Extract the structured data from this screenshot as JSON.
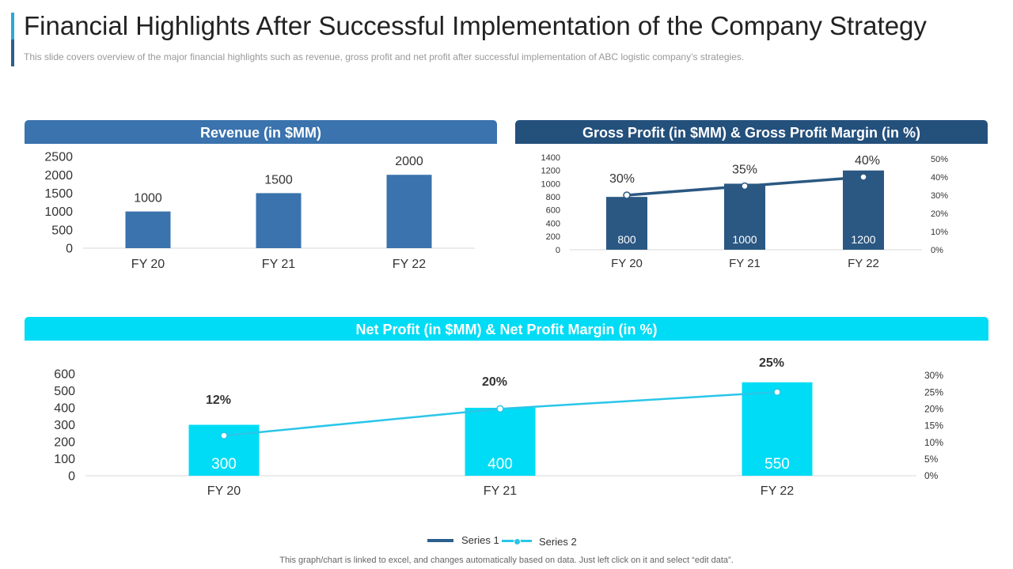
{
  "header": {
    "title": "Financial Highlights After Successful Implementation of the Company Strategy",
    "subtitle": "This slide covers overview  of the major financial highlights such as revenue,  gross profit and net profit after successful implementation of ABC logistic company’s strategies.",
    "accent_top": "#2aa8d8",
    "accent_bottom": "#2e5f8a"
  },
  "footer": {
    "note": "This graph/chart is linked to excel,  and changes automatically based on data. Just left click on it and select “edit data”."
  },
  "legend": {
    "series1": "Series 1",
    "series2": "Series 2",
    "series1_color": "#2b5f8c",
    "series2_color": "#29c6e8"
  },
  "chart_data": [
    {
      "id": "revenue",
      "type": "bar",
      "title": "Revenue (in $MM)",
      "header_color": "#3a73ad",
      "bar_color": "#3a73ad",
      "categories": [
        "FY 20",
        "FY 21",
        "FY 22"
      ],
      "values": [
        1000,
        1500,
        2000
      ],
      "data_labels": [
        "1000",
        "1500",
        "2000"
      ],
      "yticks": [
        "0",
        "500",
        "1000",
        "1500",
        "2000",
        "2500"
      ],
      "ylim": [
        0,
        2500
      ],
      "xlabel": "",
      "ylabel": ""
    },
    {
      "id": "gross-profit",
      "type": "bar",
      "title": "Gross Profit (in $MM) & Gross Profit Margin (in %)",
      "header_color": "#24507c",
      "bar_color": "#2b5882",
      "line_color": "#2b5882",
      "categories": [
        "FY 20",
        "FY 21",
        "FY 22"
      ],
      "values": [
        800,
        1000,
        1200
      ],
      "data_labels": [
        "800",
        "1000",
        "1200"
      ],
      "line_values": [
        30,
        35,
        40
      ],
      "line_labels": [
        "30%",
        "35%",
        "40%"
      ],
      "yticks": [
        "0",
        "200",
        "400",
        "600",
        "800",
        "1000",
        "1200",
        "1400"
      ],
      "ylim": [
        0,
        1400
      ],
      "y2ticks": [
        "0%",
        "10%",
        "20%",
        "30%",
        "40%",
        "50%"
      ],
      "y2lim": [
        0,
        50
      ],
      "xlabel": "",
      "ylabel": ""
    },
    {
      "id": "net-profit",
      "type": "bar",
      "title": "Net Profit (in $MM) & Net Profit Margin (in %)",
      "header_color": "#00dcf5",
      "bar_color": "#00dcf5",
      "line_color": "#29c6e8",
      "categories": [
        "FY 20",
        "FY 21",
        "FY 22"
      ],
      "values": [
        300,
        400,
        550
      ],
      "data_labels": [
        "300",
        "400",
        "550"
      ],
      "line_values": [
        12,
        20,
        25
      ],
      "line_labels": [
        "12%",
        "20%",
        "25%"
      ],
      "yticks": [
        "0",
        "100",
        "200",
        "300",
        "400",
        "500",
        "600"
      ],
      "ylim": [
        0,
        600
      ],
      "y2ticks": [
        "0%",
        "5%",
        "10%",
        "15%",
        "20%",
        "25%",
        "30%"
      ],
      "y2lim": [
        0,
        30
      ],
      "xlabel": "",
      "ylabel": ""
    }
  ]
}
